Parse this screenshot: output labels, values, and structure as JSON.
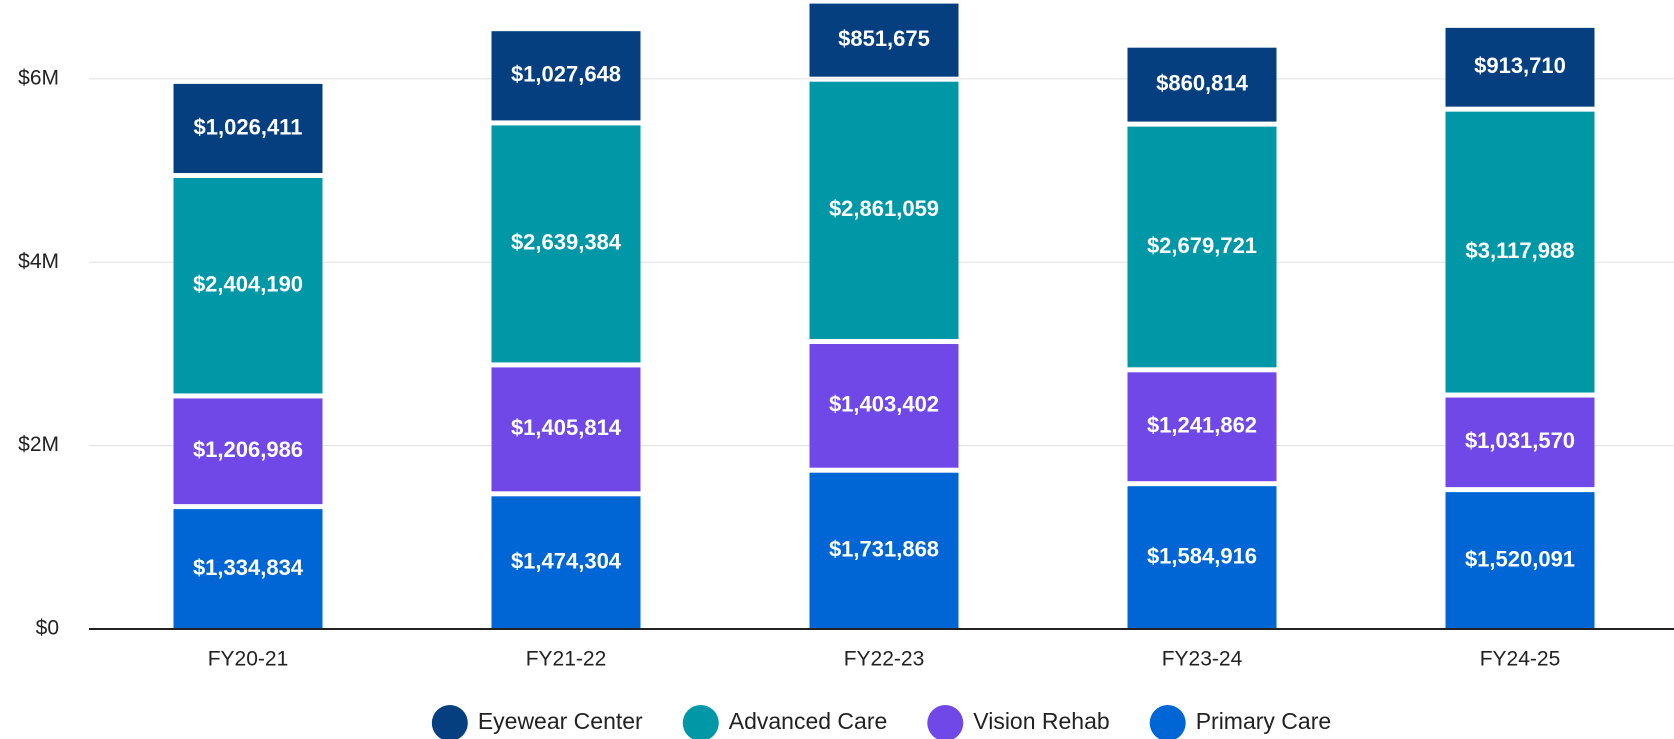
{
  "chart_data": {
    "type": "stacked_bar",
    "categories": [
      "FY20-21",
      "FY21-22",
      "FY22-23",
      "FY23-24",
      "FY24-25"
    ],
    "series": [
      {
        "name": "Primary Care",
        "color": "#0066d6",
        "values": [
          1334834,
          1474304,
          1731868,
          1584916,
          1520091
        ],
        "value_labels": [
          "$1,334,834",
          "$1,474,304",
          "$1,731,868",
          "$1,584,916",
          "$1,520,091"
        ]
      },
      {
        "name": "Vision Rehab",
        "color": "#7048e8",
        "values": [
          1206986,
          1405814,
          1403402,
          1241862,
          1031570
        ],
        "value_labels": [
          "$1,206,986",
          "$1,405,814",
          "$1,403,402",
          "$1,241,862",
          "$1,031,570"
        ]
      },
      {
        "name": "Advanced Care",
        "color": "#0097a7",
        "values": [
          2404190,
          2639384,
          2861059,
          2679721,
          3117988
        ],
        "value_labels": [
          "$2,404,190",
          "$2,639,384",
          "$2,861,059",
          "$2,679,721",
          "$3,117,988"
        ]
      },
      {
        "name": "Eyewear Center",
        "color": "#053f80",
        "values": [
          1026411,
          1027648,
          851675,
          860814,
          913710
        ],
        "value_labels": [
          "$1,026,411",
          "$1,027,648",
          "$851,675",
          "$860,814",
          "$913,710"
        ]
      }
    ],
    "ylim": [
      0,
      6860000
    ],
    "yticks": [
      {
        "value": 0,
        "label": "$0"
      },
      {
        "value": 2000000,
        "label": "$2M"
      },
      {
        "value": 4000000,
        "label": "$4M"
      },
      {
        "value": 6000000,
        "label": "$6M"
      }
    ],
    "grid": true,
    "legend": "bottom"
  }
}
